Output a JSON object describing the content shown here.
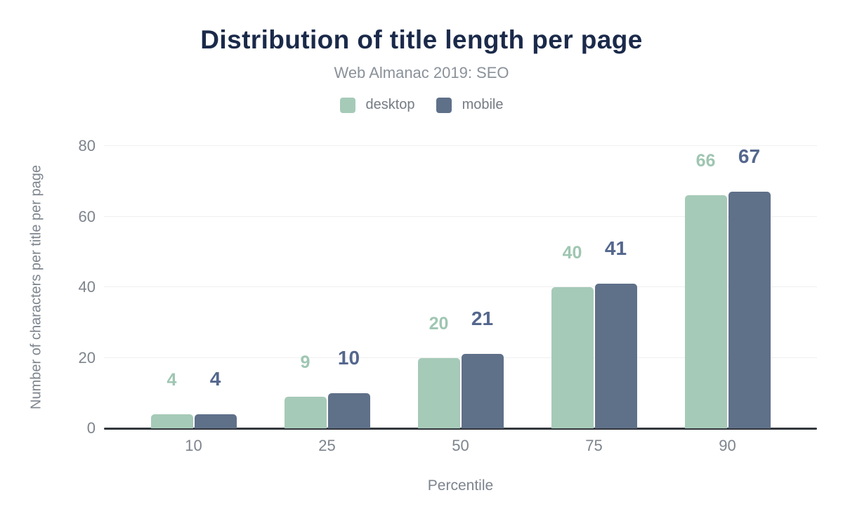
{
  "chart_data": {
    "type": "bar",
    "title": "Distribution of title length per page",
    "subtitle": "Web Almanac 2019: SEO",
    "categories": [
      "10",
      "25",
      "50",
      "75",
      "90"
    ],
    "series": [
      {
        "name": "desktop",
        "color": "#a6cab8",
        "label_color": "#9fc6b2",
        "values": [
          4,
          9,
          20,
          40,
          66
        ]
      },
      {
        "name": "mobile",
        "color": "#5f7089",
        "label_color": "#54678d",
        "values": [
          4,
          10,
          21,
          41,
          67
        ]
      }
    ],
    "xlabel": "Percentile",
    "ylabel": "Number of characters per title per page",
    "ylim": [
      0,
      80
    ],
    "yticks": [
      0,
      20,
      40,
      60,
      80
    ],
    "grid": "horizontal",
    "legend_position": "top",
    "value_labels": true,
    "colors": {
      "title_text": "#1b2a4a",
      "subtitle_text": "#8a9199",
      "axis_text": "#7d848d",
      "legend_text": "#757b84",
      "gridline": "#efefef",
      "baseline": "#32363c",
      "background": "#ffffff"
    }
  }
}
